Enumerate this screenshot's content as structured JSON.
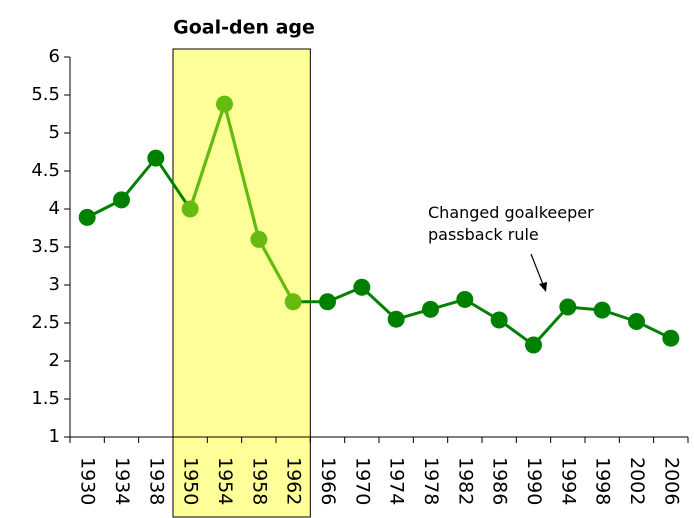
{
  "chart_data": {
    "type": "line",
    "title": "Goal-den age",
    "categories": [
      "1930",
      "1934",
      "1938",
      "1950",
      "1954",
      "1958",
      "1962",
      "1966",
      "1970",
      "1974",
      "1978",
      "1982",
      "1986",
      "1990",
      "1994",
      "1998",
      "2002",
      "2006"
    ],
    "series": [
      {
        "color": "#008000",
        "values": [
          3.89,
          4.12,
          4.67,
          4.0,
          5.38,
          3.6,
          2.78,
          2.78,
          2.97,
          2.55,
          2.68,
          2.81,
          2.54,
          2.21,
          2.71,
          2.67,
          2.52,
          2.3
        ]
      }
    ],
    "highlight": {
      "from": "1950",
      "to": "1962",
      "fill": "#ffff99",
      "mark_color": "#66bb11"
    },
    "annotation": [
      "Changed goalkeeper",
      "passback rule"
    ],
    "ylim": [
      1,
      6
    ],
    "yticks": [
      1,
      1.5,
      2,
      2.5,
      3,
      3.5,
      4,
      4.5,
      5,
      5.5,
      6
    ],
    "grid": false
  }
}
